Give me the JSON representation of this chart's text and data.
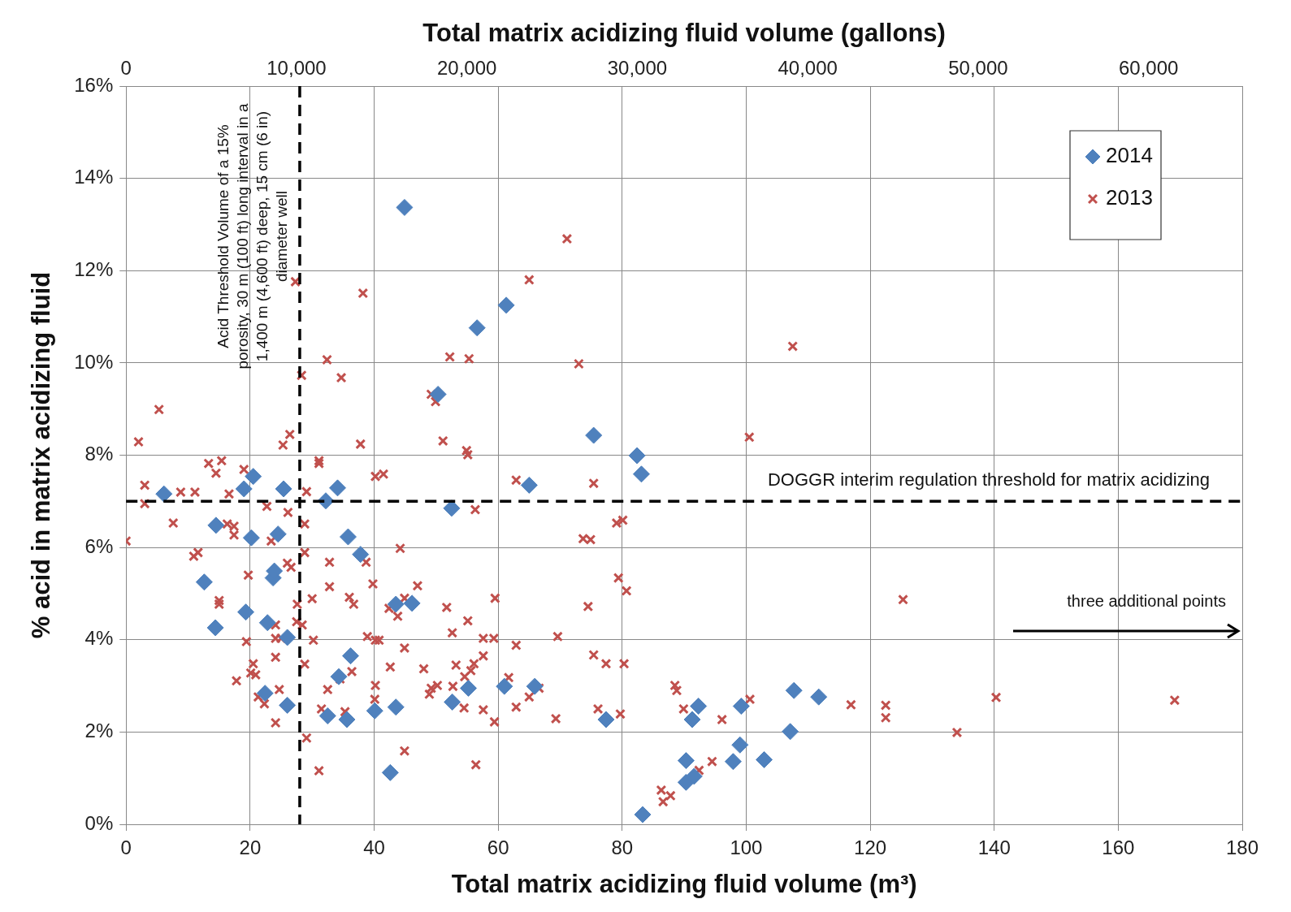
{
  "chart_data": {
    "type": "scatter",
    "xlabel": "Total matrix acidizing fluid volume (m³)",
    "x2label": "Total matrix acidizing fluid volume (gallons)",
    "ylabel": "% acid in matrix acidizing fluid",
    "xlim": [
      0,
      180
    ],
    "xticks": [
      0,
      20,
      40,
      60,
      80,
      100,
      120,
      140,
      160,
      180
    ],
    "x2lim": [
      0,
      65500
    ],
    "x2ticks": [
      {
        "value": 0,
        "label": "0"
      },
      {
        "value": 10000,
        "label": "10,000"
      },
      {
        "value": 20000,
        "label": "20,000"
      },
      {
        "value": 30000,
        "label": "30,000"
      },
      {
        "value": 40000,
        "label": "40,000"
      },
      {
        "value": 50000,
        "label": "50,000"
      },
      {
        "value": 60000,
        "label": "60,000"
      }
    ],
    "ylim": [
      0,
      16
    ],
    "yticks": [
      {
        "value": 0,
        "label": "0%"
      },
      {
        "value": 2,
        "label": "2%"
      },
      {
        "value": 4,
        "label": "4%"
      },
      {
        "value": 6,
        "label": "6%"
      },
      {
        "value": 8,
        "label": "8%"
      },
      {
        "value": 10,
        "label": "10%"
      },
      {
        "value": 12,
        "label": "12%"
      },
      {
        "value": 14,
        "label": "14%"
      },
      {
        "value": 16,
        "label": "16%"
      }
    ],
    "grid": true,
    "legend": "top right",
    "series": [
      {
        "name": "2014",
        "color": "#4f81bd",
        "marker": "diamond",
        "x": [
          6.1,
          12.6,
          14.4,
          14.5,
          19.0,
          19.3,
          20.2,
          20.5,
          22.4,
          22.8,
          23.7,
          23.9,
          24.5,
          25.4,
          26.0,
          26.0,
          32.2,
          32.5,
          34.1,
          34.3,
          35.6,
          35.8,
          36.2,
          37.8,
          40.1,
          42.6,
          43.5,
          43.5,
          44.9,
          46.1,
          50.3,
          52.5,
          52.6,
          55.2,
          56.6,
          61.0,
          61.3,
          65.0,
          65.9,
          75.4,
          77.4,
          82.4,
          83.1,
          83.3,
          90.3,
          90.3,
          91.3,
          91.6,
          92.3,
          97.9,
          99.0,
          99.2,
          102.9,
          107.1,
          107.7,
          111.7
        ],
        "values": [
          7.16,
          5.25,
          4.26,
          6.48,
          7.27,
          4.6,
          6.21,
          7.54,
          2.84,
          4.37,
          5.34,
          5.49,
          6.29,
          7.27,
          4.05,
          2.58,
          7.01,
          2.35,
          7.29,
          3.2,
          2.27,
          6.23,
          3.65,
          5.85,
          2.46,
          1.12,
          4.77,
          2.54,
          13.37,
          4.79,
          9.32,
          6.85,
          2.65,
          2.95,
          10.76,
          2.99,
          11.25,
          7.35,
          2.99,
          8.43,
          2.27,
          7.99,
          7.59,
          0.21,
          1.38,
          0.91,
          2.27,
          1.04,
          2.56,
          1.36,
          1.72,
          2.56,
          1.4,
          2.01,
          2.9,
          2.76
        ]
      },
      {
        "name": "2013",
        "color": "#c0504d",
        "marker": "cross",
        "x": [
          0,
          2.0,
          3.0,
          3.0,
          5.3,
          7.6,
          8.8,
          10.9,
          11.6,
          11.1,
          13.3,
          14.5,
          15.4,
          19.0,
          16.6,
          22.7,
          26.1,
          29.1,
          28.8,
          16.3,
          17.4,
          17.4,
          23.4,
          28.8,
          32.8,
          26.0,
          26.6,
          38.7,
          19.7,
          39.8,
          32.8,
          15.0,
          15.0,
          27.6,
          30.0,
          36.0,
          36.7,
          27.5,
          28.4,
          24.1,
          24.1,
          25.0,
          19.4,
          30.2,
          38.9,
          40.2,
          24.1,
          28.8,
          20.5,
          20.1,
          20.9,
          17.8,
          36.4,
          34.5,
          32.5,
          24.7,
          21.3,
          22.3,
          31.5,
          35.3,
          40.2,
          40.1,
          24.1,
          29.1,
          31.1,
          31.1,
          31.1,
          40.2,
          27.3,
          38.2,
          32.4,
          28.3,
          34.7,
          25.3,
          26.4,
          37.8,
          71.1,
          65.0,
          52.2,
          55.3,
          73.0,
          49.2,
          49.9,
          51.1,
          54.9,
          55.1,
          41.5,
          62.9,
          75.4,
          56.3,
          73.7,
          74.9,
          79.1,
          80.1,
          44.2,
          47.0,
          59.5,
          44.9,
          42.4,
          43.8,
          51.7,
          55.1,
          79.4,
          80.7,
          74.5,
          52.6,
          57.6,
          59.3,
          62.9,
          69.6,
          40.8,
          44.9,
          57.6,
          56.1,
          55.6,
          53.2,
          42.6,
          48.0,
          75.4,
          77.4,
          80.3,
          54.6,
          61.7,
          49.2,
          50.2,
          48.9,
          52.7,
          65.0,
          66.6,
          62.9,
          54.5,
          57.6,
          59.4,
          69.3,
          76.1,
          79.7,
          44.9,
          56.4,
          107.5,
          100.5,
          125.3,
          88.5,
          88.8,
          89.9,
          96.1,
          100.6,
          116.9,
          122.5,
          122.5,
          94.5,
          92.4,
          86.3,
          86.6,
          87.8,
          134.0,
          140.3,
          169.1
        ],
        "values": [
          6.14,
          8.29,
          7.35,
          6.95,
          8.99,
          6.53,
          7.2,
          5.81,
          5.89,
          7.2,
          7.82,
          7.61,
          7.88,
          7.69,
          7.16,
          6.89,
          6.76,
          7.21,
          6.51,
          6.51,
          6.46,
          6.27,
          6.14,
          5.89,
          5.68,
          5.66,
          5.57,
          5.68,
          5.4,
          5.21,
          5.15,
          4.85,
          4.77,
          4.77,
          4.89,
          4.92,
          4.77,
          4.39,
          4.32,
          4.32,
          4.03,
          4.03,
          3.96,
          3.99,
          4.07,
          3.99,
          3.62,
          3.47,
          3.48,
          3.28,
          3.24,
          3.11,
          3.31,
          3.15,
          2.92,
          2.92,
          2.76,
          2.61,
          2.5,
          2.44,
          3.01,
          2.71,
          2.2,
          1.87,
          1.16,
          7.88,
          7.82,
          7.54,
          11.76,
          11.51,
          10.07,
          9.73,
          9.68,
          8.22,
          8.45,
          8.24,
          12.69,
          11.8,
          10.13,
          10.09,
          9.98,
          9.32,
          9.16,
          8.31,
          8.1,
          8.01,
          7.59,
          7.46,
          7.39,
          6.82,
          6.19,
          6.17,
          6.53,
          6.59,
          5.98,
          5.17,
          4.9,
          4.9,
          4.68,
          4.51,
          4.7,
          4.41,
          5.34,
          5.06,
          4.72,
          4.15,
          4.03,
          4.03,
          3.88,
          4.07,
          3.99,
          3.82,
          3.65,
          3.48,
          3.33,
          3.45,
          3.41,
          3.37,
          3.67,
          3.48,
          3.48,
          3.2,
          3.18,
          2.95,
          3.01,
          2.82,
          2.99,
          2.76,
          2.95,
          2.54,
          2.52,
          2.48,
          2.22,
          2.29,
          2.5,
          2.39,
          1.59,
          1.29,
          10.36,
          8.39,
          4.87,
          3.01,
          2.9,
          2.5,
          2.27,
          2.71,
          2.59,
          2.58,
          2.31,
          1.36,
          1.17,
          0.74,
          0.49,
          0.62,
          1.99,
          2.75,
          2.69
        ]
      }
    ],
    "ref_lines": [
      {
        "axis": "x",
        "value": 28,
        "label": "Acid Threshold Volume of a 15% porosity, 30 m (100 ft) long interval in a 1,400 m (4,600 ft) deep, 15 cm (6 in) diameter well",
        "color": "#000000",
        "line_style": "dashed"
      },
      {
        "axis": "y",
        "value": 7,
        "label": "DOGGR interim regulation threshold for matrix acidizing",
        "color": "#000000",
        "line_style": "dashed"
      }
    ],
    "annotations": [
      "three additional points"
    ]
  }
}
